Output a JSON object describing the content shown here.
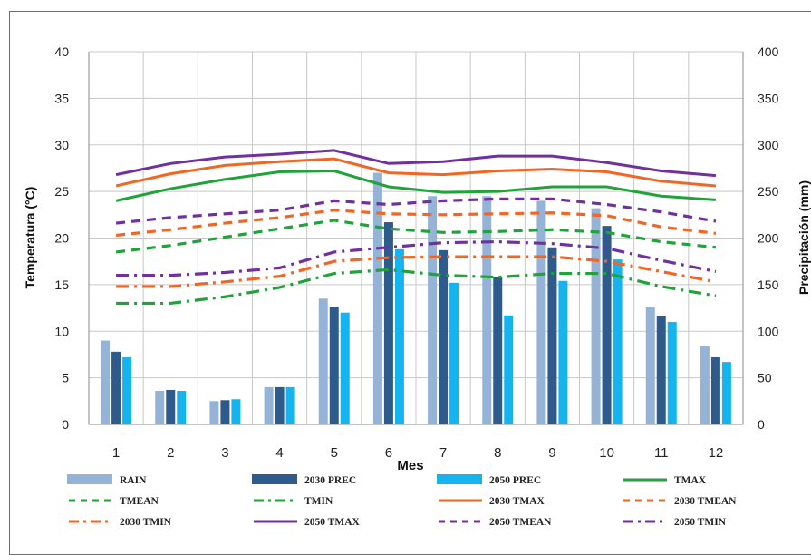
{
  "chart_data": {
    "type": "bar",
    "title": "",
    "xlabel": "Mes",
    "ylabel": "Temperatura (°C)",
    "y2label": "Precipitación (mm)",
    "ylim": [
      0,
      40
    ],
    "y2lim": [
      0,
      400
    ],
    "yticks": [
      "0",
      "5",
      "10",
      "15",
      "20",
      "25",
      "30",
      "35",
      "40"
    ],
    "y2ticks": [
      "0",
      "50",
      "100",
      "150",
      "200",
      "250",
      "300",
      "350",
      "400"
    ],
    "categories": [
      "1",
      "2",
      "3",
      "4",
      "5",
      "6",
      "7",
      "8",
      "9",
      "10",
      "11",
      "12"
    ],
    "grid": true,
    "legend_position": "bottom",
    "bar_series": [
      {
        "name": "RAIN",
        "color": "#95b3d7",
        "axis": "right",
        "values": [
          90,
          36,
          25,
          40,
          135,
          270,
          245,
          245,
          240,
          232,
          126,
          84
        ]
      },
      {
        "name": "2030 PREC",
        "color": "#2e5a8c",
        "axis": "right",
        "values": [
          78,
          37,
          26,
          40,
          126,
          217,
          187,
          158,
          190,
          213,
          116,
          72
        ]
      },
      {
        "name": "2050 PREC",
        "color": "#16b4ee",
        "axis": "right",
        "values": [
          72,
          36,
          27,
          40,
          120,
          188,
          152,
          117,
          154,
          177,
          110,
          67
        ]
      }
    ],
    "line_series": [
      {
        "name": "TMAX",
        "color": "#1fa33a",
        "dash": "solid",
        "axis": "left",
        "values": [
          24.0,
          25.3,
          26.3,
          27.1,
          27.2,
          25.5,
          24.9,
          25.0,
          25.5,
          25.5,
          24.5,
          24.1
        ]
      },
      {
        "name": "TMEAN",
        "color": "#1fa33a",
        "dash": "dash",
        "axis": "left",
        "values": [
          18.5,
          19.2,
          20.1,
          21.0,
          21.9,
          21.0,
          20.6,
          20.7,
          20.9,
          20.6,
          19.6,
          19.0
        ]
      },
      {
        "name": "TMIN",
        "color": "#1fa33a",
        "dash": "dashdot",
        "axis": "left",
        "values": [
          13.0,
          13.0,
          13.7,
          14.7,
          16.2,
          16.6,
          16.0,
          15.8,
          16.2,
          16.2,
          14.8,
          13.8
        ]
      },
      {
        "name": "2030 TMAX",
        "color": "#f26522",
        "dash": "solid",
        "axis": "left",
        "values": [
          25.6,
          26.9,
          27.8,
          28.2,
          28.5,
          27.0,
          26.8,
          27.2,
          27.4,
          27.1,
          26.1,
          25.6
        ]
      },
      {
        "name": "2030 TMEAN",
        "color": "#f26522",
        "dash": "dash",
        "axis": "left",
        "values": [
          20.3,
          20.9,
          21.6,
          22.2,
          23.0,
          22.6,
          22.5,
          22.6,
          22.7,
          22.4,
          21.2,
          20.5
        ]
      },
      {
        "name": "2030 TMIN",
        "color": "#f26522",
        "dash": "dashdot",
        "axis": "left",
        "values": [
          14.8,
          14.8,
          15.3,
          15.9,
          17.5,
          17.9,
          18.0,
          18.0,
          18.0,
          17.5,
          16.4,
          15.3
        ]
      },
      {
        "name": "2050 TMAX",
        "color": "#7030a0",
        "dash": "solid",
        "axis": "left",
        "values": [
          26.8,
          28.0,
          28.7,
          29.0,
          29.4,
          28.0,
          28.2,
          28.8,
          28.8,
          28.1,
          27.2,
          26.7
        ]
      },
      {
        "name": "2050 TMEAN",
        "color": "#7030a0",
        "dash": "dash",
        "axis": "left",
        "values": [
          21.6,
          22.2,
          22.6,
          23.0,
          24.0,
          23.6,
          24.0,
          24.2,
          24.2,
          23.6,
          22.8,
          21.8
        ]
      },
      {
        "name": "2050 TMIN",
        "color": "#7030a0",
        "dash": "dashdot",
        "axis": "left",
        "values": [
          16.0,
          16.0,
          16.3,
          16.8,
          18.5,
          19.0,
          19.5,
          19.6,
          19.4,
          18.9,
          17.6,
          16.4
        ]
      }
    ],
    "legend": [
      "RAIN",
      "2030 PREC",
      "2050 PREC",
      "TMAX",
      "TMEAN",
      "TMIN",
      "2030 TMAX",
      "2030 TMEAN",
      "2030 TMIN",
      "2050 TMAX",
      "2050 TMEAN",
      "2050 TMIN"
    ]
  }
}
